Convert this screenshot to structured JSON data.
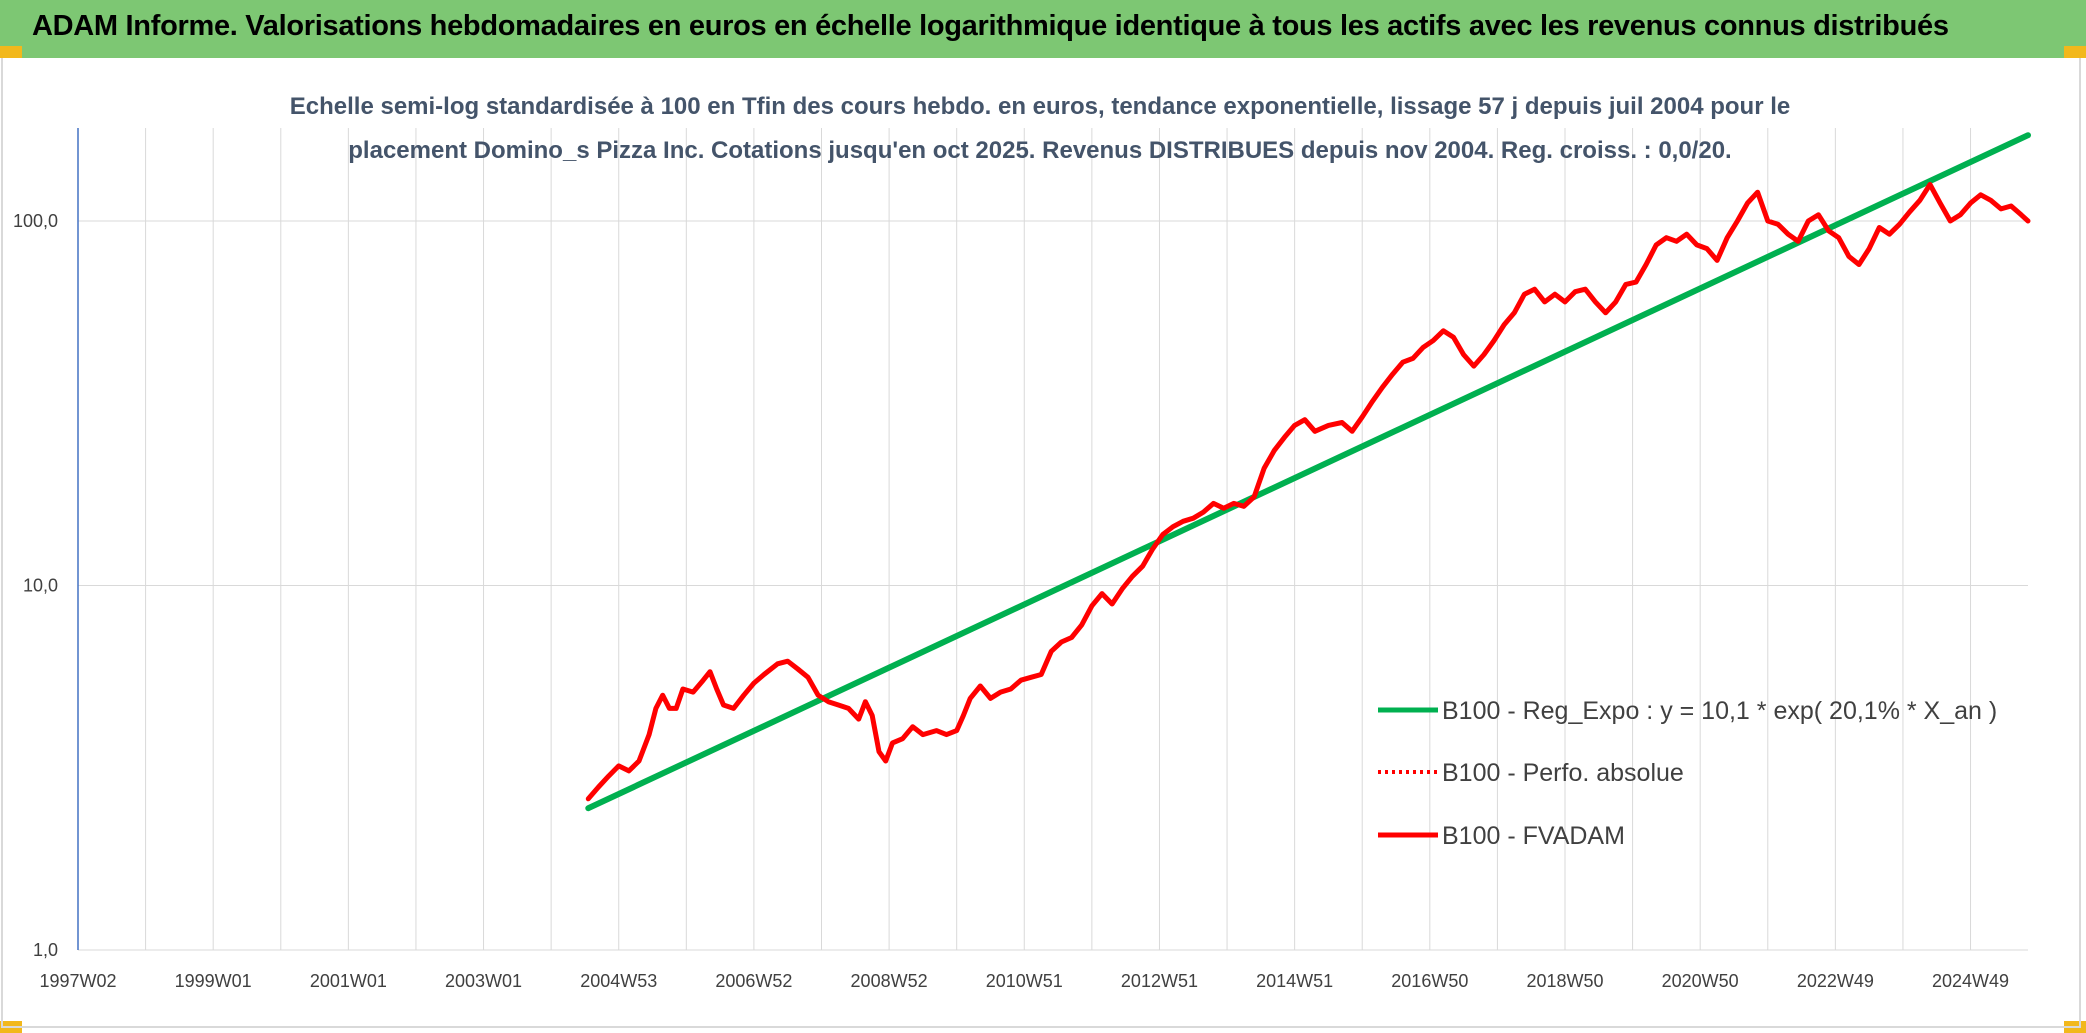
{
  "banner": {
    "title": "ADAM Informe. Valorisations hebdomadaires en euros en échelle logarithmique identique à tous les actifs avec les revenus connus distribués",
    "background": "#7dc773",
    "corner_color": "#f2b81c"
  },
  "chart_data": {
    "type": "line",
    "title_line1": "Echelle semi-log standardisée à 100 en Tfin des cours hebdo. en euros, tendance exponentielle, lissage 57 j depuis juil 2004 pour le",
    "title_line2": "placement Domino_s Pizza Inc. Cotations jusqu'en oct 2025. Revenus DISTRIBUES depuis nov 2004. Reg. croiss. : 0,0/20.",
    "y_scale": "log",
    "ylim": [
      1,
      180
    ],
    "y_ticks": [
      {
        "value": 1,
        "label": "1,0"
      },
      {
        "value": 10,
        "label": "10,0"
      },
      {
        "value": 100,
        "label": "100,0"
      }
    ],
    "x_range": [
      1997.0,
      2025.85
    ],
    "x_ticks": [
      {
        "year": 1997.0,
        "label": "1997W02"
      },
      {
        "year": 1999.0,
        "label": "1999W01"
      },
      {
        "year": 2001.0,
        "label": "2001W01"
      },
      {
        "year": 2003.0,
        "label": "2003W01"
      },
      {
        "year": 2005.0,
        "label": "2004W53"
      },
      {
        "year": 2007.0,
        "label": "2006W52"
      },
      {
        "year": 2009.0,
        "label": "2008W52"
      },
      {
        "year": 2011.0,
        "label": "2010W51"
      },
      {
        "year": 2013.0,
        "label": "2012W51"
      },
      {
        "year": 2015.0,
        "label": "2014W51"
      },
      {
        "year": 2017.0,
        "label": "2016W50"
      },
      {
        "year": 2019.0,
        "label": "2018W50"
      },
      {
        "year": 2021.0,
        "label": "2020W50"
      },
      {
        "year": 2023.0,
        "label": "2022W49"
      },
      {
        "year": 2025.0,
        "label": "2024W49"
      }
    ],
    "grid": "vertical at every year, horizontal at each decade",
    "legend_position": "lower-right",
    "series": [
      {
        "name": "B100 - Reg_Expo : y = 10,1 * exp( 20,1% *  X_an )",
        "color": "#00b050",
        "style": "solid",
        "points": [
          [
            2004.55,
            2.45
          ],
          [
            2025.85,
            172
          ]
        ]
      },
      {
        "name": "B100 - Perfo. absolue",
        "color": "#ff0000",
        "style": "dotted",
        "points": []
      },
      {
        "name": "B100 - FVADAM",
        "color": "#ff0000",
        "style": "solid",
        "points": [
          [
            2004.55,
            2.6
          ],
          [
            2004.7,
            2.8
          ],
          [
            2004.85,
            3.0
          ],
          [
            2005.0,
            3.2
          ],
          [
            2005.15,
            3.1
          ],
          [
            2005.3,
            3.3
          ],
          [
            2005.45,
            3.9
          ],
          [
            2005.55,
            4.6
          ],
          [
            2005.65,
            5.0
          ],
          [
            2005.75,
            4.6
          ],
          [
            2005.85,
            4.6
          ],
          [
            2005.95,
            5.2
          ],
          [
            2006.1,
            5.1
          ],
          [
            2006.25,
            5.5
          ],
          [
            2006.35,
            5.8
          ],
          [
            2006.45,
            5.2
          ],
          [
            2006.55,
            4.7
          ],
          [
            2006.7,
            4.6
          ],
          [
            2006.85,
            5.0
          ],
          [
            2007.0,
            5.4
          ],
          [
            2007.15,
            5.7
          ],
          [
            2007.35,
            6.1
          ],
          [
            2007.5,
            6.2
          ],
          [
            2007.65,
            5.9
          ],
          [
            2007.8,
            5.6
          ],
          [
            2007.95,
            5.0
          ],
          [
            2008.1,
            4.8
          ],
          [
            2008.25,
            4.7
          ],
          [
            2008.4,
            4.6
          ],
          [
            2008.55,
            4.3
          ],
          [
            2008.65,
            4.8
          ],
          [
            2008.75,
            4.4
          ],
          [
            2008.85,
            3.5
          ],
          [
            2008.95,
            3.3
          ],
          [
            2009.05,
            3.7
          ],
          [
            2009.2,
            3.8
          ],
          [
            2009.35,
            4.1
          ],
          [
            2009.5,
            3.9
          ],
          [
            2009.7,
            4.0
          ],
          [
            2009.85,
            3.9
          ],
          [
            2010.0,
            4.0
          ],
          [
            2010.1,
            4.4
          ],
          [
            2010.2,
            4.9
          ],
          [
            2010.35,
            5.3
          ],
          [
            2010.5,
            4.9
          ],
          [
            2010.65,
            5.1
          ],
          [
            2010.8,
            5.2
          ],
          [
            2010.95,
            5.5
          ],
          [
            2011.1,
            5.6
          ],
          [
            2011.25,
            5.7
          ],
          [
            2011.4,
            6.6
          ],
          [
            2011.55,
            7.0
          ],
          [
            2011.7,
            7.2
          ],
          [
            2011.85,
            7.8
          ],
          [
            2012.0,
            8.8
          ],
          [
            2012.15,
            9.5
          ],
          [
            2012.3,
            8.9
          ],
          [
            2012.45,
            9.8
          ],
          [
            2012.6,
            10.6
          ],
          [
            2012.75,
            11.3
          ],
          [
            2012.9,
            12.6
          ],
          [
            2013.05,
            13.8
          ],
          [
            2013.2,
            14.5
          ],
          [
            2013.35,
            15.0
          ],
          [
            2013.5,
            15.3
          ],
          [
            2013.65,
            15.9
          ],
          [
            2013.8,
            16.8
          ],
          [
            2013.95,
            16.3
          ],
          [
            2014.1,
            16.8
          ],
          [
            2014.25,
            16.5
          ],
          [
            2014.4,
            17.5
          ],
          [
            2014.55,
            21.0
          ],
          [
            2014.7,
            23.5
          ],
          [
            2014.85,
            25.5
          ],
          [
            2015.0,
            27.5
          ],
          [
            2015.15,
            28.5
          ],
          [
            2015.3,
            26.5
          ],
          [
            2015.5,
            27.5
          ],
          [
            2015.7,
            28.0
          ],
          [
            2015.85,
            26.5
          ],
          [
            2016.0,
            29.0
          ],
          [
            2016.15,
            32.0
          ],
          [
            2016.3,
            35.0
          ],
          [
            2016.45,
            38.0
          ],
          [
            2016.6,
            41.0
          ],
          [
            2016.75,
            42.0
          ],
          [
            2016.9,
            45.0
          ],
          [
            2017.05,
            47.0
          ],
          [
            2017.2,
            50.0
          ],
          [
            2017.35,
            48.0
          ],
          [
            2017.5,
            43.0
          ],
          [
            2017.65,
            40.0
          ],
          [
            2017.8,
            43.0
          ],
          [
            2017.95,
            47.0
          ],
          [
            2018.1,
            52.0
          ],
          [
            2018.25,
            56.0
          ],
          [
            2018.4,
            63.0
          ],
          [
            2018.55,
            65.0
          ],
          [
            2018.7,
            60.0
          ],
          [
            2018.85,
            63.0
          ],
          [
            2019.0,
            60.0
          ],
          [
            2019.15,
            64.0
          ],
          [
            2019.3,
            65.0
          ],
          [
            2019.45,
            60.0
          ],
          [
            2019.6,
            56.0
          ],
          [
            2019.75,
            60.0
          ],
          [
            2019.9,
            67.0
          ],
          [
            2020.05,
            68.0
          ],
          [
            2020.2,
            76.0
          ],
          [
            2020.35,
            86.0
          ],
          [
            2020.5,
            90.0
          ],
          [
            2020.65,
            88.0
          ],
          [
            2020.8,
            92.0
          ],
          [
            2020.95,
            86.0
          ],
          [
            2021.1,
            84.0
          ],
          [
            2021.25,
            78.0
          ],
          [
            2021.4,
            90.0
          ],
          [
            2021.55,
            100.0
          ],
          [
            2021.7,
            112.0
          ],
          [
            2021.85,
            120.0
          ],
          [
            2022.0,
            100.0
          ],
          [
            2022.15,
            98.0
          ],
          [
            2022.3,
            92.0
          ],
          [
            2022.45,
            88.0
          ],
          [
            2022.6,
            100.0
          ],
          [
            2022.75,
            104.0
          ],
          [
            2022.9,
            94.0
          ],
          [
            2023.05,
            90.0
          ],
          [
            2023.2,
            80.0
          ],
          [
            2023.35,
            76.0
          ],
          [
            2023.5,
            84.0
          ],
          [
            2023.65,
            96.0
          ],
          [
            2023.8,
            92.0
          ],
          [
            2023.95,
            98.0
          ],
          [
            2024.1,
            106.0
          ],
          [
            2024.25,
            114.0
          ],
          [
            2024.4,
            126.0
          ],
          [
            2024.55,
            112.0
          ],
          [
            2024.7,
            100.0
          ],
          [
            2024.85,
            104.0
          ],
          [
            2025.0,
            112.0
          ],
          [
            2025.15,
            118.0
          ],
          [
            2025.3,
            114.0
          ],
          [
            2025.45,
            108.0
          ],
          [
            2025.6,
            110.0
          ],
          [
            2025.75,
            104.0
          ],
          [
            2025.85,
            100.0
          ]
        ]
      }
    ]
  }
}
